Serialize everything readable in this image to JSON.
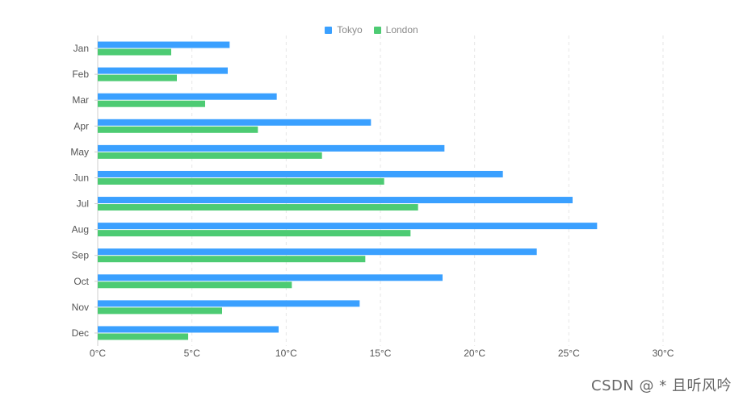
{
  "legend": {
    "items": [
      {
        "label": "Tokyo",
        "color": "#3aa0ff"
      },
      {
        "label": "London",
        "color": "#4dcb73"
      }
    ]
  },
  "watermark": "CSDN @ * 且听风吟",
  "chart_data": {
    "type": "bar",
    "orientation": "horizontal",
    "categories": [
      "Jan",
      "Feb",
      "Mar",
      "Apr",
      "May",
      "Jun",
      "Jul",
      "Aug",
      "Sep",
      "Oct",
      "Nov",
      "Dec"
    ],
    "series": [
      {
        "name": "Tokyo",
        "color": "#3aa0ff",
        "values": [
          7.0,
          6.9,
          9.5,
          14.5,
          18.4,
          21.5,
          25.2,
          26.5,
          23.3,
          18.3,
          13.9,
          9.6
        ]
      },
      {
        "name": "London",
        "color": "#4dcb73",
        "values": [
          3.9,
          4.2,
          5.7,
          8.5,
          11.9,
          15.2,
          17.0,
          16.6,
          14.2,
          10.3,
          6.6,
          4.8
        ]
      }
    ],
    "x_ticks": [
      "0°C",
      "5°C",
      "10°C",
      "15°C",
      "20°C",
      "25°C",
      "30°C"
    ],
    "xlim": [
      0,
      30
    ],
    "grid": true,
    "legend_position": "top-center",
    "title": "",
    "xlabel": "",
    "ylabel": ""
  }
}
